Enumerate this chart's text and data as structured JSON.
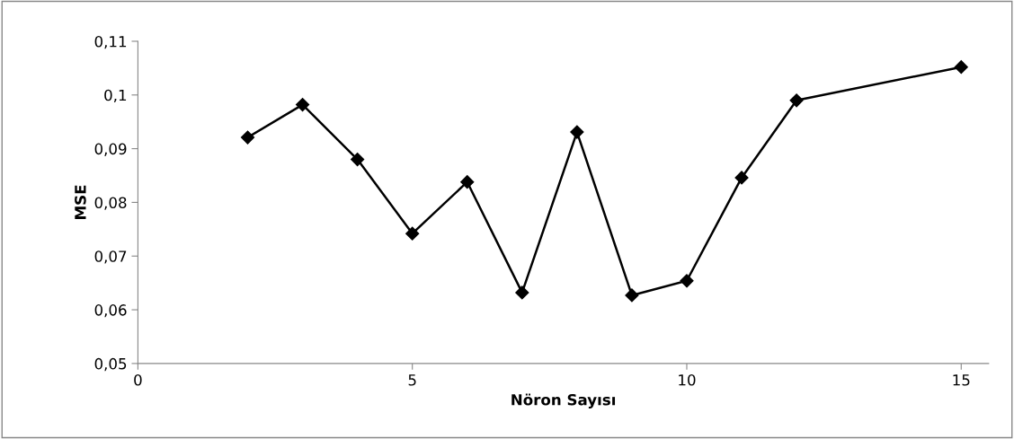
{
  "chart_data": {
    "type": "line",
    "xlabel": "Nöron Sayısı",
    "ylabel": "MSE",
    "x": [
      2,
      3,
      4,
      5,
      6,
      7,
      8,
      9,
      10,
      11,
      12,
      15
    ],
    "series": [
      {
        "color": "#000000",
        "values": [
          0.0921,
          0.0982,
          0.088,
          0.0742,
          0.0838,
          0.0632,
          0.0931,
          0.0627,
          0.0654,
          0.0846,
          0.099,
          0.1052
        ]
      }
    ],
    "xlim": [
      0,
      15.5
    ],
    "xticks": [
      0,
      5,
      10,
      15
    ],
    "ylim": [
      0.05,
      0.11
    ],
    "yticks": [
      {
        "value": 0.05,
        "label": "0,05"
      },
      {
        "value": 0.06,
        "label": "0,06"
      },
      {
        "value": 0.07,
        "label": "0,07"
      },
      {
        "value": 0.08,
        "label": "0,08"
      },
      {
        "value": 0.09,
        "label": "0,09"
      },
      {
        "value": 0.1,
        "label": "0,1"
      },
      {
        "value": 0.11,
        "label": "0,11"
      }
    ],
    "grid": false,
    "legend": false,
    "marker": "diamond",
    "line_style": "solid"
  }
}
